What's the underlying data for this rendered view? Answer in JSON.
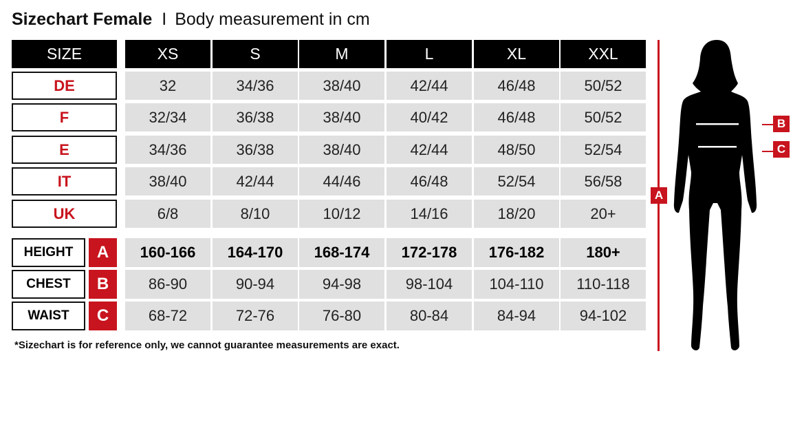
{
  "title": {
    "main": "Sizechart Female",
    "separator": "I",
    "subtitle": "Body measurement in cm"
  },
  "header": {
    "label": "SIZE",
    "sizes": [
      "XS",
      "S",
      "M",
      "L",
      "XL",
      "XXL"
    ]
  },
  "conversion_rows": [
    {
      "label": "DE",
      "values": [
        "32",
        "34/36",
        "38/40",
        "42/44",
        "46/48",
        "50/52"
      ]
    },
    {
      "label": "F",
      "values": [
        "32/34",
        "36/38",
        "38/40",
        "40/42",
        "46/48",
        "50/52"
      ]
    },
    {
      "label": "E",
      "values": [
        "34/36",
        "36/38",
        "38/40",
        "42/44",
        "48/50",
        "52/54"
      ]
    },
    {
      "label": "IT",
      "values": [
        "38/40",
        "42/44",
        "44/46",
        "46/48",
        "52/54",
        "56/58"
      ]
    },
    {
      "label": "UK",
      "values": [
        "6/8",
        "8/10",
        "10/12",
        "14/16",
        "18/20",
        "20+"
      ]
    }
  ],
  "measurement_rows": [
    {
      "label": "HEIGHT",
      "letter": "A",
      "values": [
        "160-166",
        "164-170",
        "168-174",
        "172-178",
        "176-182",
        "180+"
      ]
    },
    {
      "label": "CHEST",
      "letter": "B",
      "values": [
        "86-90",
        "90-94",
        "94-98",
        "98-104",
        "104-110",
        "110-118"
      ]
    },
    {
      "label": "WAIST",
      "letter": "C",
      "values": [
        "68-72",
        "72-76",
        "76-80",
        "80-84",
        "84-94",
        "94-102"
      ]
    }
  ],
  "note": "*Sizechart is for reference only, we cannot guarantee measurements are exact.",
  "figure": {
    "height_marker": "A",
    "chest_marker": "B",
    "waist_marker": "C"
  },
  "colors": {
    "accent": "#c8141e",
    "header_bg": "#000000",
    "cell_bg": "#e0e0e0"
  }
}
